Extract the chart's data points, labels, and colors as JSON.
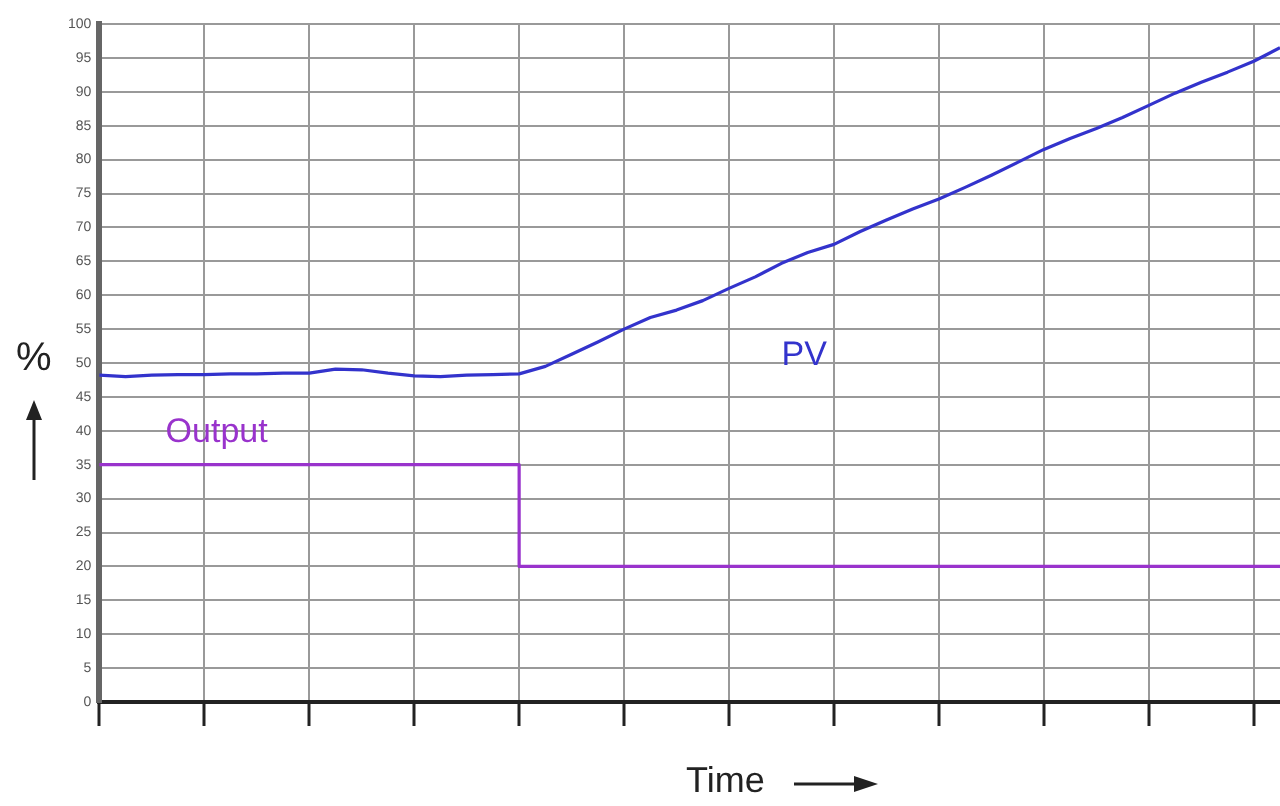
{
  "chart_data": {
    "type": "line",
    "xlabel": "Time",
    "ylabel": "%",
    "categories": [
      null,
      null,
      null,
      null,
      null,
      null,
      null,
      null,
      null,
      null,
      null,
      null,
      null,
      null,
      null,
      null,
      null,
      null,
      null,
      null,
      null,
      null,
      null,
      null,
      null,
      null,
      null,
      null,
      null,
      null,
      null,
      null,
      null,
      null,
      null,
      null,
      null,
      null,
      null,
      null,
      null,
      null,
      null,
      null,
      null,
      null
    ],
    "ylim": [
      0,
      100
    ],
    "yticks": [
      0,
      5,
      10,
      15,
      20,
      25,
      30,
      35,
      40,
      45,
      50,
      55,
      60,
      65,
      70,
      75,
      80,
      85,
      90,
      95,
      100
    ],
    "grid": true,
    "legend": false,
    "marker": "none",
    "line_style": "solid",
    "tick_labels": "y",
    "series": [
      {
        "name": "PV",
        "color": "#3333cc",
        "values": [
          48.2,
          48.0,
          48.2,
          48.3,
          48.3,
          48.4,
          48.4,
          48.5,
          48.5,
          49.1,
          49.0,
          48.5,
          48.1,
          48.0,
          48.2,
          48.3,
          48.4,
          49.5,
          51.3,
          53.1,
          55.0,
          56.7,
          57.8,
          59.2,
          61.0,
          62.7,
          64.7,
          66.3,
          67.5,
          69.4,
          71.1,
          72.7,
          74.2,
          75.9,
          77.7,
          79.6,
          81.5,
          83.1,
          84.6,
          86.2,
          88.0,
          89.8,
          91.4,
          92.9,
          94.5,
          96.5
        ]
      },
      {
        "name": "Output",
        "type": "step",
        "color": "#9933cc",
        "values": [
          35,
          35,
          35,
          35,
          35,
          35,
          35,
          35,
          35,
          35,
          35,
          35,
          35,
          35,
          35,
          35,
          20,
          20,
          20,
          20,
          20,
          20,
          20,
          20,
          20,
          20,
          20,
          20,
          20,
          20,
          20,
          20,
          20,
          20,
          20,
          20,
          20,
          20,
          20,
          20,
          20,
          20,
          20,
          20,
          20,
          20
        ]
      }
    ]
  }
}
